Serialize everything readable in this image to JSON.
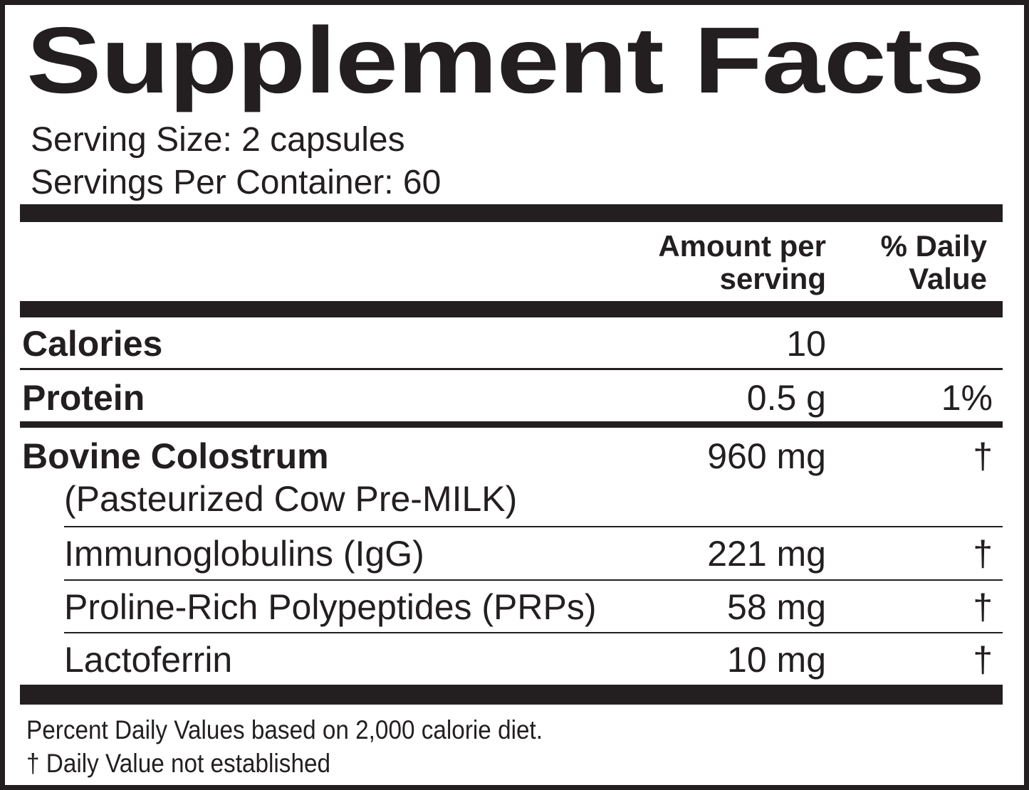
{
  "title": "Supplement Facts",
  "serving_size": "Serving Size: 2 capsules",
  "servings_per_container": "Servings Per Container: 60",
  "header": {
    "amount": [
      "Amount per",
      "serving"
    ],
    "daily_value": [
      "% Daily",
      "Value"
    ]
  },
  "rows": [
    {
      "name": "Calories",
      "amount": "10"
    },
    {
      "name": "Protein",
      "amount": "0.5 g",
      "daily_value": "1%"
    },
    {
      "name": "Bovine Colostrum",
      "note": "(Pasteurized Cow Pre-MILK)",
      "amount": "960 mg",
      "daily_value": "†"
    },
    {
      "name": "Immunoglobulins (IgG)",
      "amount": "221 mg",
      "daily_value": "†"
    },
    {
      "name": "Proline-Rich Polypeptides (PRPs)",
      "amount": "58 mg",
      "daily_value": "†"
    },
    {
      "name": "Lactoferrin",
      "amount": "10 mg",
      "daily_value": "†"
    }
  ],
  "footnotes": [
    "Percent Daily Values based on 2,000 calorie diet.",
    "† Daily Value not established"
  ]
}
